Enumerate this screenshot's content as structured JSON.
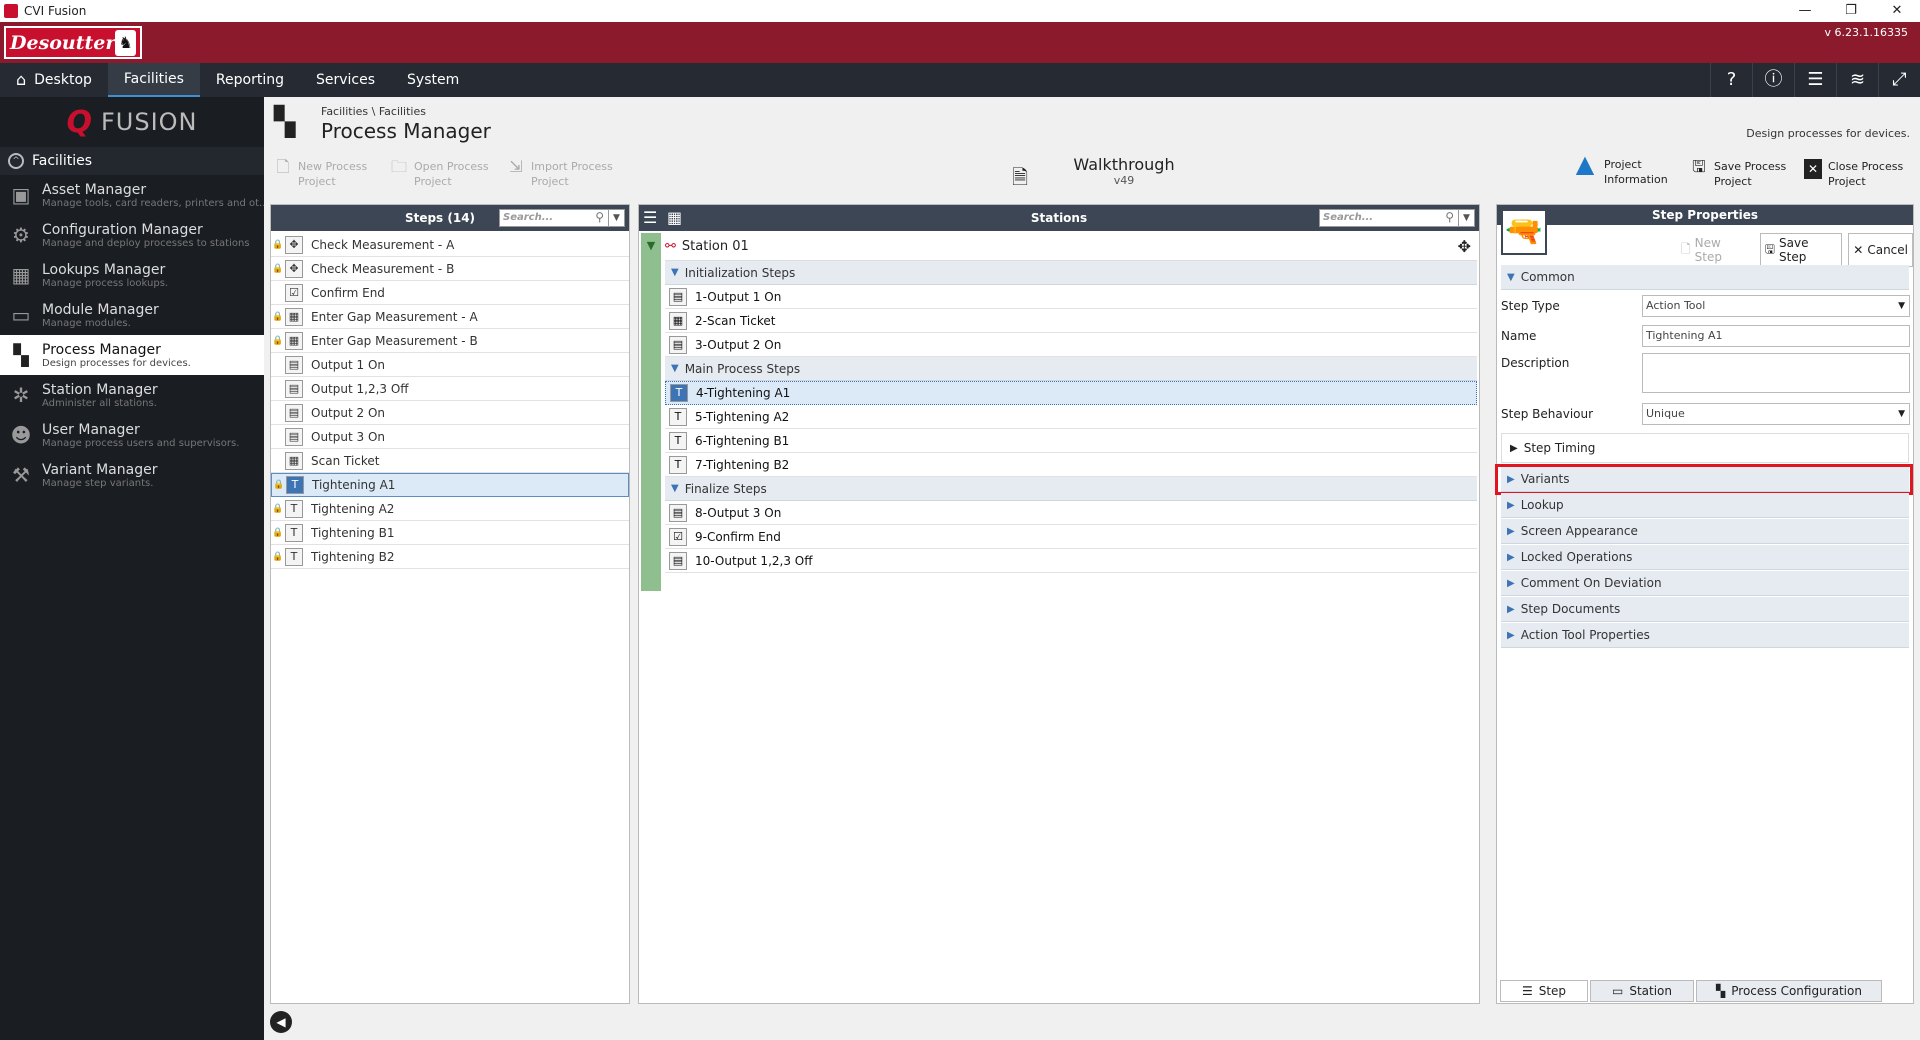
{
  "window": {
    "title": "CVI Fusion",
    "controls": [
      "—",
      "❐",
      "✕"
    ]
  },
  "brand": {
    "logo_text": "Desoutter",
    "version": "v 6.23.1.16335"
  },
  "nav": {
    "items": [
      {
        "label": "Desktop",
        "icon": "home-icon",
        "active": false
      },
      {
        "label": "Facilities",
        "active": true
      },
      {
        "label": "Reporting",
        "active": false
      },
      {
        "label": "Services",
        "active": false
      },
      {
        "label": "System",
        "active": false
      }
    ],
    "right_icons": [
      "help-icon",
      "info-icon",
      "menu-icon",
      "database-icon",
      "expand-icon"
    ]
  },
  "sidebar": {
    "logo_text": "FUSION",
    "section": "Facilities",
    "items": [
      {
        "title": "Asset Manager",
        "desc": "Manage tools, card readers, printers and ot...",
        "icon": "toolbox-icon"
      },
      {
        "title": "Configuration Manager",
        "desc": "Manage and deploy processes to stations",
        "icon": "gears-icon"
      },
      {
        "title": "Lookups Manager",
        "desc": "Manage process lookups.",
        "icon": "calendar-grid-icon"
      },
      {
        "title": "Module Manager",
        "desc": "Manage modules.",
        "icon": "monitor-icon"
      },
      {
        "title": "Process Manager",
        "desc": "Design processes for devices.",
        "icon": "blocks-icon",
        "active": true
      },
      {
        "title": "Station Manager",
        "desc": "Administer all stations.",
        "icon": "network-icon"
      },
      {
        "title": "User Manager",
        "desc": "Manage process users and supervisors.",
        "icon": "users-icon"
      },
      {
        "title": "Variant Manager",
        "desc": "Manage step variants.",
        "icon": "variant-icon"
      }
    ]
  },
  "header": {
    "breadcrumb": "Facilities \\ Facilities",
    "title": "Process Manager",
    "description": "Design processes for devices."
  },
  "toolbar": {
    "new_process": "New Process\nProject",
    "open_process": "Open Process\nProject",
    "import_process": "Import Process\nProject",
    "walkthrough_title": "Walkthrough",
    "walkthrough_version": "v49",
    "project_info": "Project\nInformation",
    "save_process": "Save Process\nProject",
    "close_process": "Close Process\nProject"
  },
  "steps_panel": {
    "title": "Steps (14)",
    "search_placeholder": "Search...",
    "rows": [
      {
        "label": "Check Measurement - A",
        "icon": "✥",
        "lock": "light"
      },
      {
        "label": "Check Measurement - B",
        "icon": "✥",
        "lock": "light"
      },
      {
        "label": "Confirm End",
        "icon": "☑",
        "lock": "none"
      },
      {
        "label": "Enter Gap Measurement - A",
        "icon": "▦",
        "lock": "light"
      },
      {
        "label": "Enter Gap Measurement - B",
        "icon": "▦",
        "lock": "light"
      },
      {
        "label": "Output 1 On",
        "icon": "▤",
        "lock": "none"
      },
      {
        "label": "Output 1,2,3 Off",
        "icon": "▤",
        "lock": "none"
      },
      {
        "label": "Output 2 On",
        "icon": "▤",
        "lock": "none"
      },
      {
        "label": "Output 3 On",
        "icon": "▤",
        "lock": "none"
      },
      {
        "label": "Scan Ticket",
        "icon": "▦",
        "lock": "none"
      },
      {
        "label": "Tightening A1",
        "icon": "T",
        "lock": "dark",
        "selected": true
      },
      {
        "label": "Tightening A2",
        "icon": "T",
        "lock": "dark"
      },
      {
        "label": "Tightening B1",
        "icon": "T",
        "lock": "dark"
      },
      {
        "label": "Tightening B2",
        "icon": "T",
        "lock": "dark"
      }
    ]
  },
  "stations_panel": {
    "title": "Stations",
    "search_placeholder": "Search...",
    "station_name": "Station 01",
    "groups": [
      {
        "label": "Initialization Steps",
        "steps": [
          {
            "label": "1-Output 1 On",
            "icon": "▤"
          },
          {
            "label": "2-Scan Ticket",
            "icon": "▦"
          },
          {
            "label": "3-Output 2 On",
            "icon": "▤"
          }
        ]
      },
      {
        "label": "Main Process Steps",
        "steps": [
          {
            "label": "4-Tightening A1",
            "icon": "T",
            "selected": true
          },
          {
            "label": "5-Tightening A2",
            "icon": "T"
          },
          {
            "label": "6-Tightening B1",
            "icon": "T"
          },
          {
            "label": "7-Tightening B2",
            "icon": "T"
          }
        ]
      },
      {
        "label": "Finalize Steps",
        "steps": [
          {
            "label": "8-Output 3 On",
            "icon": "▤"
          },
          {
            "label": "9-Confirm End",
            "icon": "☑"
          },
          {
            "label": "10-Output 1,2,3 Off",
            "icon": "▤"
          }
        ]
      }
    ]
  },
  "props_panel": {
    "title": "Step Properties",
    "new_step": "New Step",
    "save_step": "Save Step",
    "cancel": "Cancel",
    "common": "Common",
    "step_type_label": "Step Type",
    "step_type_value": "Action Tool",
    "name_label": "Name",
    "name_value": "Tightening A1",
    "description_label": "Description",
    "description_value": "",
    "behaviour_label": "Step Behaviour",
    "behaviour_value": "Unique",
    "step_timing": "Step Timing",
    "sections": [
      "Variants",
      "Lookup",
      "Screen Appearance",
      "Locked Operations",
      "Comment On Deviation",
      "Step Documents",
      "Action Tool Properties"
    ],
    "highlighted_section": "Variants",
    "highlight_color": "#e0151f"
  },
  "bottom_tabs": {
    "step": "Step",
    "station": "Station",
    "process_config": "Process Configuration"
  },
  "colors": {
    "brand_red": "#8b1a2c",
    "nav_bg": "#262b33",
    "panel_header": "#3c4654",
    "accent_blue": "#3d8fd6"
  }
}
